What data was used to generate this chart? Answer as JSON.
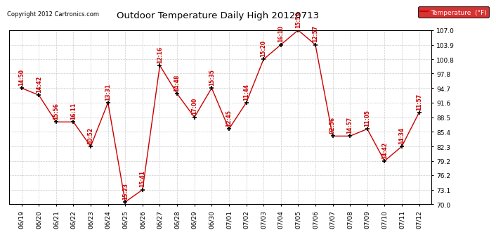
{
  "title": "Outdoor Temperature Daily High 20120713",
  "copyright": "Copyright 2012 Cartronics.com",
  "legend_label": "Temperature  (°F)",
  "x_labels": [
    "06/19",
    "06/20",
    "06/21",
    "06/22",
    "06/23",
    "06/24",
    "06/25",
    "06/26",
    "06/27",
    "06/28",
    "06/29",
    "06/30",
    "07/01",
    "07/02",
    "07/03",
    "07/04",
    "07/05",
    "07/06",
    "07/07",
    "07/08",
    "07/09",
    "07/10",
    "07/11",
    "07/12"
  ],
  "y_values": [
    94.7,
    93.2,
    87.5,
    87.5,
    82.3,
    91.6,
    70.5,
    73.1,
    99.5,
    93.5,
    88.5,
    94.7,
    86.0,
    91.6,
    100.8,
    103.9,
    107.0,
    103.9,
    84.5,
    84.5,
    86.0,
    79.2,
    82.3,
    89.5
  ],
  "time_labels": [
    "14:50",
    "14:42",
    "15:56",
    "16:11",
    "10:52",
    "13:31",
    "15:23",
    "15:41",
    "12:16",
    "14:48",
    "17:00",
    "15:35",
    "12:45",
    "11:44",
    "15:20",
    "16:10",
    "15:59",
    "12:57",
    "02:56",
    "14:57",
    "11:05",
    "14:42",
    "14:34",
    "11:57"
  ],
  "ylim": [
    70.0,
    107.0
  ],
  "yticks": [
    70.0,
    73.1,
    76.2,
    79.2,
    82.3,
    85.4,
    88.5,
    91.6,
    94.7,
    97.8,
    100.8,
    103.9,
    107.0
  ],
  "line_color": "#cc0000",
  "marker_color": "#000000",
  "legend_bg": "#cc0000",
  "legend_text_color": "#ffffff",
  "title_color": "#000000",
  "copyright_color": "#000000",
  "annotation_color": "#cc0000",
  "bg_color": "#ffffff",
  "grid_color": "#cccccc"
}
